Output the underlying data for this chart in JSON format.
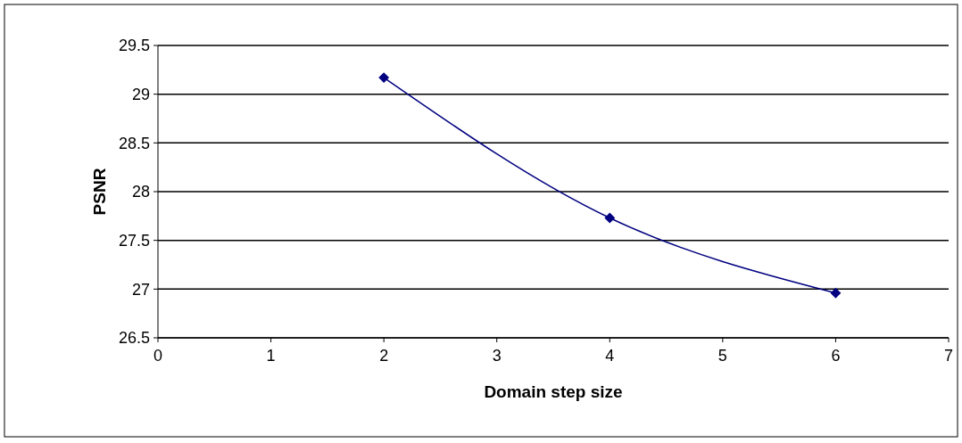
{
  "chart_data": {
    "type": "line",
    "xlabel": "Domain step size",
    "ylabel": "PSNR",
    "x": [
      2,
      4,
      6
    ],
    "series": [
      {
        "color": "#000080",
        "values": [
          29.17,
          27.73,
          26.96
        ]
      }
    ],
    "xlim": [
      0,
      7
    ],
    "xticks": [
      0,
      1,
      2,
      3,
      4,
      5,
      6,
      7
    ],
    "ylim": [
      26.5,
      29.5
    ],
    "yticks": [
      26.5,
      27,
      27.5,
      28,
      28.5,
      29,
      29.5
    ],
    "grid": "y",
    "marker": "diamond",
    "line_style": "solid"
  }
}
